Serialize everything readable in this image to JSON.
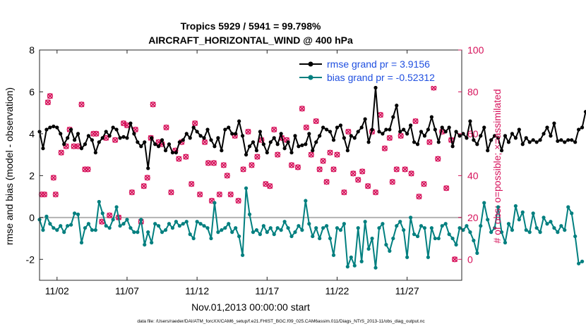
{
  "chart_data": {
    "type": "line",
    "title": "Tropics 5929 / 5941 = 99.798%",
    "subtitle": "AIRCRAFT_HORIZONTAL_WIND @ 400 hPa",
    "xlabel": "Nov.01,2013 00:00:00 start",
    "ylabel_left": "rmse and bias (model - observation)",
    "ylabel_right": "# of obs: o=possible; ×=assimilated",
    "footer": "data file: /Users/raeder/DAI/ATM_forcXX/CAM6_setup/f.e21.FHIST_BGC.f09_025.CAM6assim.011/Diags_NTrS_2013-11/obs_diag_output.nc",
    "xlim": [
      0.75,
      30.9
    ],
    "ylim_left": [
      -3,
      8
    ],
    "ylim_right": [
      -10,
      100
    ],
    "x_ticks": [
      2,
      7,
      12,
      17,
      22,
      27
    ],
    "x_tick_labels": [
      "11/02",
      "11/07",
      "11/12",
      "11/17",
      "11/22",
      "11/27"
    ],
    "y_left_ticks": [
      "-2",
      "0",
      "2",
      "4",
      "6",
      "8"
    ],
    "y_right_ticks": [
      "0",
      "20",
      "40",
      "60",
      "80",
      "100"
    ],
    "grid": false,
    "legend_position": "top-right",
    "colors": {
      "rmse": "#000000",
      "bias": "#007f7f",
      "obs": "#d6115a",
      "zero_line": "#b3b3b3",
      "legend_text": "#1f4fe0"
    },
    "series": [
      {
        "name": "rmse grand pr = 3.9156",
        "start": 0.75,
        "step": 0.25,
        "values": [
          4.1,
          3.3,
          4.2,
          4.3,
          4.35,
          4.3,
          4.0,
          3.5,
          3.8,
          4.2,
          3.7,
          4.0,
          3.3,
          3.5,
          3.9,
          3.7,
          3.1,
          3.6,
          3.8,
          4.1,
          3.9,
          4.3,
          4.2,
          3.8,
          3.85,
          3.8,
          4.5,
          4.0,
          3.6,
          3.4,
          3.6,
          2.35,
          3.8,
          3.5,
          3.4,
          3.7,
          3.2,
          3.5,
          3.1,
          3.1,
          3.6,
          3.7,
          4.0,
          3.8,
          4.3,
          4.1,
          3.9,
          3.8,
          4.2,
          3.7,
          3.4,
          3.8,
          3.2,
          4.2,
          4.3,
          4.0,
          4.0,
          4.6,
          3.9,
          3.0,
          3.4,
          3.6,
          3.2,
          4.1,
          3.5,
          3.1,
          3.6,
          3.8,
          3.5,
          4.0,
          3.3,
          3.6,
          3.1,
          3.9,
          3.4,
          3.45,
          3.5,
          4.0,
          3.2,
          3.6,
          3.9,
          4.3,
          4.2,
          4.1,
          3.7,
          4.3,
          4.4,
          3.8,
          3.2,
          3.9,
          3.8,
          4.1,
          4.3,
          4.7,
          3.6,
          4.2,
          6.2,
          4.1,
          4.0,
          4.2,
          4.2,
          4.8,
          5.35,
          4.1,
          4.2,
          4.0,
          4.4,
          3.6,
          3.5,
          4.1,
          3.9,
          4.2,
          4.8,
          4.2,
          3.6,
          4.3,
          4.1,
          4.3,
          3.4,
          4.1,
          3.9,
          4.0,
          3.8,
          4.6,
          3.7,
          3.5,
          3.9,
          4.3,
          3.2,
          3.7,
          3.9,
          3.8,
          3.2,
          3.9,
          3.6,
          4.0,
          3.8,
          4.2,
          3.5,
          3.8,
          3.6,
          3.7,
          3.6,
          3.7,
          4.0,
          4.3,
          3.9,
          4.5,
          3.65,
          3.7,
          3.6,
          3.7,
          3.7,
          3.6,
          4.2,
          4.3,
          5.05
        ]
      },
      {
        "name": "bias grand pr = -0.52312",
        "start": 0.75,
        "step": 0.25,
        "values": [
          -0.1,
          -0.6,
          0.05,
          -0.3,
          -0.5,
          -0.6,
          -0.4,
          -0.7,
          -0.4,
          -0.35,
          0.2,
          0.15,
          -1.2,
          -0.5,
          -0.3,
          -0.6,
          -0.6,
          0.75,
          0.2,
          -0.4,
          -0.5,
          -0.1,
          0.5,
          -0.4,
          -0.3,
          -0.1,
          -0.5,
          -0.7,
          -0.7,
          -0.1,
          -1.3,
          -0.7,
          -1.2,
          -0.3,
          -0.4,
          -0.7,
          -0.6,
          -0.3,
          -0.5,
          -0.2,
          -0.4,
          -0.3,
          -0.2,
          -0.8,
          -1.0,
          -0.2,
          -0.3,
          -0.4,
          -0.5,
          -1.0,
          0.7,
          -0.7,
          -0.6,
          -0.5,
          -0.3,
          -0.7,
          -0.5,
          -0.9,
          -1.8,
          1.4,
          0.15,
          -0.7,
          -0.6,
          -0.8,
          -0.4,
          -0.7,
          -0.5,
          -0.8,
          -0.5,
          -0.6,
          -0.2,
          -0.5,
          -0.9,
          -0.7,
          -0.4,
          -0.6,
          0.8,
          -0.3,
          -0.9,
          -0.5,
          -1.0,
          -0.5,
          -0.4,
          -1.0,
          -1.8,
          -0.5,
          -0.6,
          -0.3,
          -2.35,
          -1.9,
          -2.3,
          -0.5,
          -2.1,
          -0.2,
          -1.5,
          -1.0,
          -2.4,
          -0.5,
          -0.3,
          -1.3,
          -1.6,
          -1.0,
          -0.4,
          -0.2,
          -0.6,
          -1.9,
          0.0,
          -0.8,
          -0.9,
          -0.4,
          -0.5,
          -1.9,
          -0.5,
          -1.0,
          -1.0,
          -0.4,
          -0.3,
          -0.8,
          -1.0,
          -1.3,
          -0.5,
          -0.6,
          -0.4,
          -0.7,
          -1.1,
          -1.7,
          -0.4,
          0.7,
          -0.1,
          -0.7,
          -0.5,
          0.5,
          -0.7,
          -1.2,
          -0.3,
          -0.6,
          0.55,
          -0.1,
          0.25,
          -0.6,
          -0.7,
          0.2,
          -0.5,
          -0.7,
          0.0,
          -0.3,
          -0.2,
          -0.5,
          -0.7,
          -0.4,
          -0.6,
          0.5,
          0.2,
          -0.9,
          -2.2,
          -2.1
        ]
      },
      {
        "name": "# of obs",
        "points": [
          [
            0.9,
            31
          ],
          [
            1.1,
            31
          ],
          [
            1.35,
            75
          ],
          [
            1.5,
            78
          ],
          [
            1.75,
            39
          ],
          [
            1.9,
            31
          ],
          [
            2.3,
            51
          ],
          [
            2.65,
            54
          ],
          [
            2.9,
            62
          ],
          [
            3.2,
            54
          ],
          [
            3.5,
            54
          ],
          [
            3.75,
            74
          ],
          [
            4.0,
            43
          ],
          [
            4.2,
            43
          ],
          [
            4.6,
            60
          ],
          [
            4.8,
            60
          ],
          [
            5.2,
            18
          ],
          [
            5.5,
            58
          ],
          [
            5.75,
            21
          ],
          [
            6.15,
            57
          ],
          [
            6.4,
            20
          ],
          [
            6.75,
            65
          ],
          [
            7.0,
            64
          ],
          [
            7.35,
            32
          ],
          [
            7.6,
            62
          ],
          [
            8.0,
            18
          ],
          [
            8.2,
            35
          ],
          [
            8.45,
            39
          ],
          [
            8.7,
            58
          ],
          [
            8.85,
            74
          ],
          [
            9.25,
            56
          ],
          [
            9.5,
            55
          ],
          [
            9.8,
            63
          ],
          [
            10.15,
            32
          ],
          [
            10.45,
            52
          ],
          [
            10.7,
            48
          ],
          [
            10.9,
            56
          ],
          [
            11.2,
            49
          ],
          [
            11.6,
            36
          ],
          [
            11.85,
            65
          ],
          [
            12.2,
            31
          ],
          [
            12.55,
            56
          ],
          [
            12.8,
            46
          ],
          [
            13.05,
            28
          ],
          [
            13.2,
            46
          ],
          [
            13.6,
            31
          ],
          [
            13.9,
            45
          ],
          [
            14.15,
            40
          ],
          [
            14.4,
            31
          ],
          [
            14.7,
            59
          ],
          [
            14.95,
            28
          ],
          [
            15.3,
            43
          ],
          [
            15.65,
            61
          ],
          [
            15.9,
            45
          ],
          [
            16.3,
            49
          ],
          [
            16.6,
            57
          ],
          [
            16.9,
            36
          ],
          [
            17.2,
            35
          ],
          [
            17.5,
            62
          ],
          [
            17.75,
            50
          ],
          [
            18.05,
            58
          ],
          [
            18.4,
            57
          ],
          [
            18.75,
            45
          ],
          [
            19.2,
            44
          ],
          [
            19.5,
            72
          ],
          [
            19.8,
            63
          ],
          [
            20.15,
            50
          ],
          [
            20.5,
            66
          ],
          [
            20.75,
            43
          ],
          [
            21.0,
            47
          ],
          [
            21.25,
            37
          ],
          [
            21.5,
            51
          ],
          [
            21.75,
            43
          ],
          [
            22.0,
            50
          ],
          [
            22.5,
            32
          ],
          [
            22.8,
            61
          ],
          [
            23.15,
            41
          ],
          [
            23.5,
            38
          ],
          [
            23.8,
            42
          ],
          [
            24.2,
            35
          ],
          [
            24.5,
            61
          ],
          [
            24.75,
            32
          ],
          [
            25.1,
            69
          ],
          [
            25.4,
            53
          ],
          [
            25.75,
            58
          ],
          [
            25.95,
            37
          ],
          [
            26.25,
            43
          ],
          [
            26.55,
            59
          ],
          [
            26.85,
            43
          ],
          [
            27.3,
            41
          ],
          [
            27.6,
            66
          ],
          [
            27.85,
            30
          ],
          [
            28.2,
            36
          ],
          [
            28.6,
            56
          ],
          [
            28.9,
            82
          ],
          [
            29.2,
            48
          ],
          [
            29.5,
            61
          ],
          [
            29.8,
            34
          ],
          [
            30.15,
            57
          ],
          [
            30.4,
            0
          ]
        ]
      }
    ]
  }
}
